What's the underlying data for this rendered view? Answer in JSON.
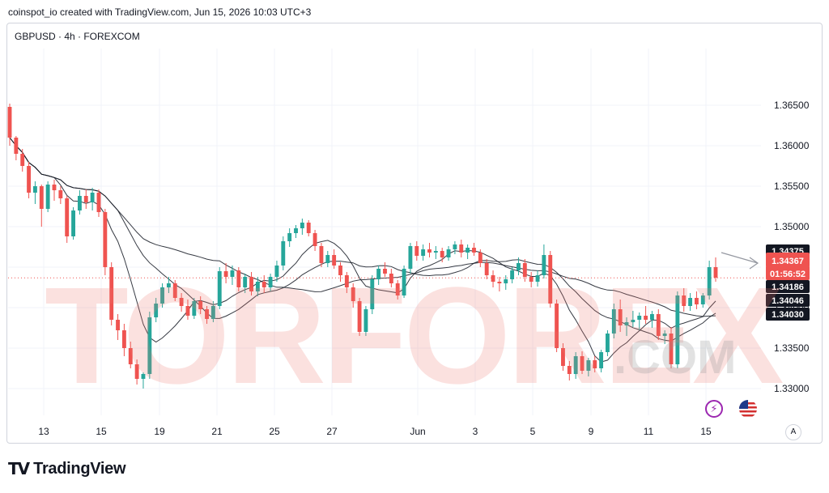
{
  "header": {
    "caption": "coinspot_io created with TradingView.com, Jun 15, 2026 10:03 UTC+3"
  },
  "symbol_line": "GBPUSD · 4h · FOREXCOM",
  "branding": {
    "logo": "TV",
    "name": "TradingView",
    "watermark": "TORFOREX",
    "watermark_com": ".COM"
  },
  "toolbar": {
    "auto_label": "A"
  },
  "colors": {
    "up": "#26a69a",
    "down": "#ef5350",
    "ma": "#131722",
    "grid": "#f0f3fa"
  },
  "icons": [
    "lightning-icon",
    "us-flag-icon",
    "dashed-arrow-icon"
  ],
  "chart_data": {
    "type": "candlestick",
    "timeframe": "4h",
    "ylim": [
      1.327,
      1.368
    ],
    "y_ticks": [
      "1.36500",
      "1.36000",
      "1.35500",
      "1.35000",
      "1.34500",
      "1.34000",
      "1.33500",
      "1.33000"
    ],
    "x_ticks": [
      "13",
      "15",
      "19",
      "21",
      "25",
      "27",
      "Jun",
      "3",
      "5",
      "9",
      "11",
      "15"
    ],
    "price_labels": [
      {
        "text": "1.34375",
        "value": 1.34375,
        "color": "#131722"
      },
      {
        "text": "1.34367",
        "value": 1.34367,
        "color": "#ef5350"
      },
      {
        "text": "01:56:52",
        "value": 1.34367,
        "color": "#ef5350"
      },
      {
        "text": "1.34186",
        "value": 1.34186,
        "color": "#131722"
      },
      {
        "text": "1.34046",
        "value": 1.34046,
        "color": "#131722"
      },
      {
        "text": "1.34030",
        "value": 1.3403,
        "color": "#131722"
      }
    ],
    "current_price": 1.34367,
    "candles": [
      [
        1.3648,
        1.3652,
        1.36,
        1.361
      ],
      [
        1.361,
        1.3612,
        1.3582,
        1.359
      ],
      [
        1.359,
        1.3596,
        1.3568,
        1.3575
      ],
      [
        1.3575,
        1.358,
        1.3535,
        1.3542
      ],
      [
        1.3542,
        1.3556,
        1.3528,
        1.355
      ],
      [
        1.355,
        1.3552,
        1.35,
        1.3522
      ],
      [
        1.3522,
        1.3556,
        1.3518,
        1.3552
      ],
      [
        1.3552,
        1.3558,
        1.3532,
        1.3545
      ],
      [
        1.3545,
        1.355,
        1.3528,
        1.3535
      ],
      [
        1.3535,
        1.3538,
        1.348,
        1.3488
      ],
      [
        1.3488,
        1.3524,
        1.3484,
        1.352
      ],
      [
        1.352,
        1.3545,
        1.3515,
        1.3538
      ],
      [
        1.3538,
        1.3546,
        1.3522,
        1.353
      ],
      [
        1.353,
        1.3548,
        1.352,
        1.3542
      ],
      [
        1.3542,
        1.3546,
        1.3512,
        1.3518
      ],
      [
        1.3518,
        1.3522,
        1.344,
        1.345
      ],
      [
        1.345,
        1.3456,
        1.3378,
        1.3385
      ],
      [
        1.3385,
        1.3392,
        1.336,
        1.3372
      ],
      [
        1.3372,
        1.338,
        1.334,
        1.335
      ],
      [
        1.335,
        1.3358,
        1.3325,
        1.333
      ],
      [
        1.333,
        1.3336,
        1.3305,
        1.3312
      ],
      [
        1.3312,
        1.332,
        1.33,
        1.3318
      ],
      [
        1.3318,
        1.3395,
        1.3312,
        1.3388
      ],
      [
        1.3388,
        1.3412,
        1.3382,
        1.3405
      ],
      [
        1.3405,
        1.343,
        1.34,
        1.3425
      ],
      [
        1.3425,
        1.3438,
        1.3418,
        1.343
      ],
      [
        1.343,
        1.3434,
        1.3408,
        1.3412
      ],
      [
        1.3412,
        1.3418,
        1.3395,
        1.3402
      ],
      [
        1.3402,
        1.341,
        1.3385,
        1.339
      ],
      [
        1.339,
        1.3412,
        1.3386,
        1.3408
      ],
      [
        1.3408,
        1.3414,
        1.3392,
        1.3398
      ],
      [
        1.3398,
        1.3402,
        1.338,
        1.3386
      ],
      [
        1.3386,
        1.3408,
        1.3382,
        1.3402
      ],
      [
        1.3402,
        1.345,
        1.3398,
        1.3445
      ],
      [
        1.3445,
        1.3455,
        1.343,
        1.3438
      ],
      [
        1.3438,
        1.3452,
        1.3428,
        1.3446
      ],
      [
        1.3446,
        1.345,
        1.342,
        1.3425
      ],
      [
        1.3425,
        1.3442,
        1.3418,
        1.3438
      ],
      [
        1.3438,
        1.3444,
        1.3415,
        1.342
      ],
      [
        1.342,
        1.3438,
        1.3414,
        1.3432
      ],
      [
        1.3432,
        1.344,
        1.3418,
        1.3425
      ],
      [
        1.3425,
        1.3442,
        1.342,
        1.3438
      ],
      [
        1.3438,
        1.3458,
        1.3432,
        1.3452
      ],
      [
        1.3452,
        1.3488,
        1.3446,
        1.3482
      ],
      [
        1.3482,
        1.3498,
        1.3475,
        1.3492
      ],
      [
        1.3492,
        1.3502,
        1.3486,
        1.3498
      ],
      [
        1.3498,
        1.351,
        1.349,
        1.3505
      ],
      [
        1.3505,
        1.3508,
        1.3488,
        1.3492
      ],
      [
        1.3492,
        1.3496,
        1.347,
        1.3476
      ],
      [
        1.3476,
        1.348,
        1.345,
        1.3455
      ],
      [
        1.3455,
        1.347,
        1.345,
        1.3465
      ],
      [
        1.3465,
        1.3472,
        1.3448,
        1.3452
      ],
      [
        1.3452,
        1.3456,
        1.3432,
        1.344
      ],
      [
        1.344,
        1.3444,
        1.3418,
        1.3425
      ],
      [
        1.3425,
        1.343,
        1.34,
        1.3408
      ],
      [
        1.3408,
        1.3412,
        1.3365,
        1.337
      ],
      [
        1.337,
        1.3402,
        1.3365,
        1.3398
      ],
      [
        1.3398,
        1.344,
        1.3392,
        1.3435
      ],
      [
        1.3435,
        1.3452,
        1.3428,
        1.3448
      ],
      [
        1.3448,
        1.3456,
        1.3438,
        1.3442
      ],
      [
        1.3442,
        1.3448,
        1.3425,
        1.343
      ],
      [
        1.343,
        1.3434,
        1.341,
        1.3415
      ],
      [
        1.3415,
        1.3452,
        1.3412,
        1.3448
      ],
      [
        1.3448,
        1.348,
        1.3442,
        1.3476
      ],
      [
        1.3476,
        1.3482,
        1.3458,
        1.3464
      ],
      [
        1.3464,
        1.3478,
        1.3458,
        1.3472
      ],
      [
        1.3472,
        1.348,
        1.3462,
        1.3468
      ],
      [
        1.3468,
        1.3476,
        1.346,
        1.347
      ],
      [
        1.347,
        1.3474,
        1.3456,
        1.3462
      ],
      [
        1.3462,
        1.3476,
        1.3458,
        1.3472
      ],
      [
        1.3472,
        1.3482,
        1.3466,
        1.3478
      ],
      [
        1.3478,
        1.3484,
        1.3462,
        1.3468
      ],
      [
        1.3468,
        1.3478,
        1.346,
        1.3474
      ],
      [
        1.3474,
        1.348,
        1.3464,
        1.3468
      ],
      [
        1.3468,
        1.3472,
        1.345,
        1.3455
      ],
      [
        1.3455,
        1.346,
        1.3435,
        1.344
      ],
      [
        1.344,
        1.3446,
        1.3425,
        1.3432
      ],
      [
        1.3432,
        1.3438,
        1.342,
        1.343
      ],
      [
        1.343,
        1.344,
        1.3422,
        1.3435
      ],
      [
        1.3435,
        1.345,
        1.343,
        1.3446
      ],
      [
        1.3446,
        1.3462,
        1.344,
        1.3455
      ],
      [
        1.3455,
        1.346,
        1.3432,
        1.3438
      ],
      [
        1.3438,
        1.3444,
        1.3425,
        1.3432
      ],
      [
        1.3432,
        1.3446,
        1.3426,
        1.344
      ],
      [
        1.344,
        1.3478,
        1.3436,
        1.3465
      ],
      [
        1.3465,
        1.347,
        1.34,
        1.3405
      ],
      [
        1.3405,
        1.341,
        1.3345,
        1.335
      ],
      [
        1.335,
        1.3356,
        1.3322,
        1.3328
      ],
      [
        1.3328,
        1.3334,
        1.331,
        1.3318
      ],
      [
        1.3318,
        1.3345,
        1.3312,
        1.334
      ],
      [
        1.334,
        1.3346,
        1.3318,
        1.3322
      ],
      [
        1.3322,
        1.3338,
        1.3315,
        1.3335
      ],
      [
        1.3335,
        1.334,
        1.332,
        1.3325
      ],
      [
        1.3325,
        1.3348,
        1.332,
        1.3345
      ],
      [
        1.3345,
        1.3372,
        1.334,
        1.3368
      ],
      [
        1.3368,
        1.3405,
        1.3362,
        1.3398
      ],
      [
        1.3398,
        1.341,
        1.337,
        1.3378
      ],
      [
        1.3378,
        1.3388,
        1.3365,
        1.3382
      ],
      [
        1.3382,
        1.3396,
        1.3376,
        1.3385
      ],
      [
        1.3385,
        1.3394,
        1.3372,
        1.339
      ],
      [
        1.339,
        1.3402,
        1.338,
        1.3385
      ],
      [
        1.3385,
        1.3396,
        1.3375,
        1.3392
      ],
      [
        1.3392,
        1.3398,
        1.336,
        1.3365
      ],
      [
        1.3365,
        1.3372,
        1.3355,
        1.3368
      ],
      [
        1.3368,
        1.3376,
        1.3325,
        1.333
      ],
      [
        1.333,
        1.342,
        1.3325,
        1.3415
      ],
      [
        1.3415,
        1.3424,
        1.3395,
        1.3402
      ],
      [
        1.3402,
        1.3418,
        1.3396,
        1.3412
      ],
      [
        1.3412,
        1.342,
        1.3398,
        1.3404
      ],
      [
        1.3404,
        1.3418,
        1.34,
        1.3415
      ],
      [
        1.3415,
        1.3458,
        1.341,
        1.345
      ],
      [
        1.345,
        1.3462,
        1.3432,
        1.3437
      ]
    ]
  }
}
